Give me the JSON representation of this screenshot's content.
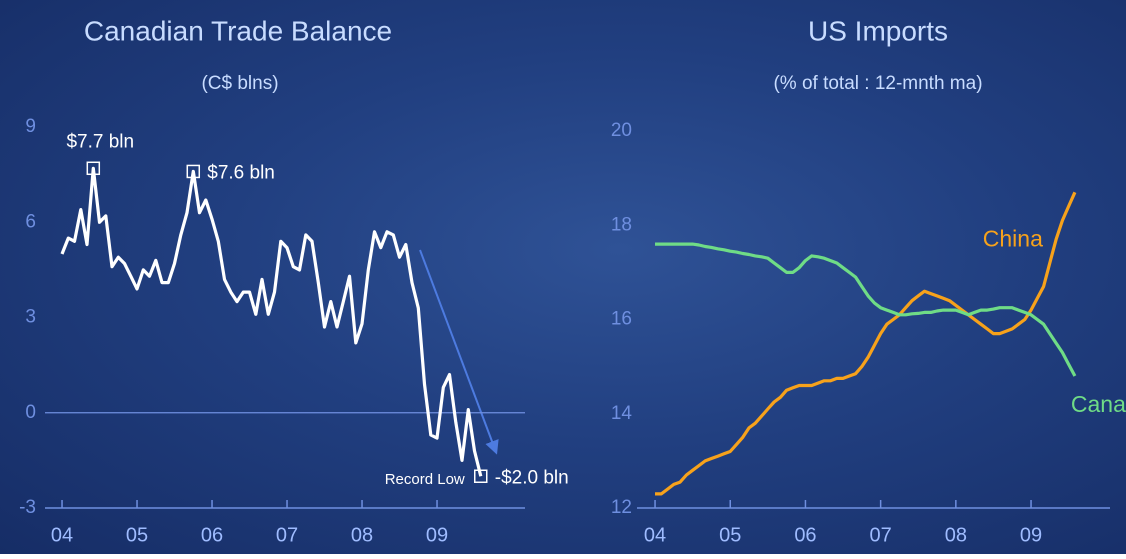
{
  "chart_data": [
    {
      "type": "line",
      "title": "Canadian Trade Balance",
      "subtitle": "(C$ blns)",
      "x": [
        2004,
        2004.083,
        2004.167,
        2004.25,
        2004.333,
        2004.417,
        2004.5,
        2004.583,
        2004.667,
        2004.75,
        2004.833,
        2004.917,
        2005,
        2005.083,
        2005.167,
        2005.25,
        2005.333,
        2005.417,
        2005.5,
        2005.583,
        2005.667,
        2005.75,
        2005.833,
        2005.917,
        2006,
        2006.083,
        2006.167,
        2006.25,
        2006.333,
        2006.417,
        2006.5,
        2006.583,
        2006.667,
        2006.75,
        2006.833,
        2006.917,
        2007,
        2007.083,
        2007.167,
        2007.25,
        2007.333,
        2007.417,
        2007.5,
        2007.583,
        2007.667,
        2007.75,
        2007.833,
        2007.917,
        2008,
        2008.083,
        2008.167,
        2008.25,
        2008.333,
        2008.417,
        2008.5,
        2008.583,
        2008.667,
        2008.75,
        2008.833,
        2008.917,
        2009,
        2009.083,
        2009.167,
        2009.25,
        2009.333,
        2009.417,
        2009.5,
        2009.583
      ],
      "values": [
        5.0,
        5.5,
        5.4,
        6.4,
        5.3,
        7.7,
        6.0,
        6.2,
        4.6,
        4.9,
        4.7,
        4.3,
        3.9,
        4.5,
        4.3,
        4.8,
        4.1,
        4.1,
        4.7,
        5.6,
        6.3,
        7.6,
        6.3,
        6.7,
        6.1,
        5.4,
        4.2,
        3.8,
        3.5,
        3.8,
        3.8,
        3.1,
        4.2,
        3.1,
        3.8,
        5.4,
        5.2,
        4.6,
        4.5,
        5.6,
        5.4,
        4.1,
        2.7,
        3.5,
        2.7,
        3.5,
        4.3,
        2.2,
        2.8,
        4.5,
        5.7,
        5.2,
        5.7,
        5.6,
        4.9,
        5.3,
        4.1,
        3.3,
        0.9,
        -0.7,
        -0.8,
        0.8,
        1.2,
        -0.3,
        -1.5,
        0.1,
        -1.2,
        -2.0
      ],
      "color": "#ffffff",
      "annotations": [
        "$7.7 bln",
        "$7.6 bln",
        "Record Low",
        "-$2.0 bln"
      ],
      "xlim": [
        2003.773,
        2010.173
      ],
      "xticks": [
        {
          "value": 2004,
          "label": "04"
        },
        {
          "value": 2005,
          "label": "05"
        },
        {
          "value": 2006,
          "label": "06"
        },
        {
          "value": 2007,
          "label": "07"
        },
        {
          "value": 2008,
          "label": "08"
        },
        {
          "value": 2009,
          "label": "09"
        }
      ],
      "ylim": [
        -3,
        9
      ],
      "yticks": [
        -3,
        0,
        3,
        6,
        9
      ]
    },
    {
      "type": "line",
      "title": "US Imports",
      "subtitle": "(% of total : 12-mnth ma)",
      "x": [
        2004,
        2004.083,
        2004.167,
        2004.25,
        2004.333,
        2004.417,
        2004.5,
        2004.583,
        2004.667,
        2004.75,
        2004.833,
        2004.917,
        2005,
        2005.083,
        2005.167,
        2005.25,
        2005.333,
        2005.417,
        2005.5,
        2005.583,
        2005.667,
        2005.75,
        2005.833,
        2005.917,
        2006,
        2006.083,
        2006.167,
        2006.25,
        2006.333,
        2006.417,
        2006.5,
        2006.583,
        2006.667,
        2006.75,
        2006.833,
        2006.917,
        2007,
        2007.083,
        2007.167,
        2007.25,
        2007.333,
        2007.417,
        2007.5,
        2007.583,
        2007.667,
        2007.75,
        2007.833,
        2007.917,
        2008,
        2008.083,
        2008.167,
        2008.25,
        2008.333,
        2008.417,
        2008.5,
        2008.583,
        2008.667,
        2008.75,
        2008.833,
        2008.917,
        2009,
        2009.083,
        2009.167,
        2009.25,
        2009.333,
        2009.417,
        2009.5,
        2009.583
      ],
      "series": [
        {
          "name": "China",
          "color": "#f7a21b",
          "values": [
            12.3,
            12.3,
            12.4,
            12.5,
            12.55,
            12.7,
            12.8,
            12.9,
            13.0,
            13.05,
            13.1,
            13.15,
            13.2,
            13.35,
            13.5,
            13.7,
            13.8,
            13.95,
            14.1,
            14.25,
            14.35,
            14.5,
            14.55,
            14.6,
            14.6,
            14.6,
            14.65,
            14.7,
            14.7,
            14.75,
            14.75,
            14.8,
            14.85,
            15.0,
            15.2,
            15.45,
            15.7,
            15.9,
            16.0,
            16.1,
            16.25,
            16.4,
            16.5,
            16.6,
            16.55,
            16.5,
            16.45,
            16.4,
            16.3,
            16.2,
            16.1,
            16.0,
            15.9,
            15.8,
            15.7,
            15.7,
            15.75,
            15.8,
            15.9,
            16.0,
            16.2,
            16.45,
            16.7,
            17.2,
            17.7,
            18.1,
            18.4,
            18.7
          ]
        },
        {
          "name": "Canada",
          "color": "#6fdc86",
          "values": [
            17.6,
            17.6,
            17.6,
            17.6,
            17.6,
            17.6,
            17.6,
            17.58,
            17.55,
            17.53,
            17.5,
            17.48,
            17.45,
            17.43,
            17.4,
            17.38,
            17.35,
            17.33,
            17.3,
            17.2,
            17.1,
            17.0,
            17.0,
            17.1,
            17.25,
            17.35,
            17.33,
            17.3,
            17.25,
            17.2,
            17.1,
            17.0,
            16.9,
            16.7,
            16.5,
            16.35,
            16.25,
            16.2,
            16.15,
            16.1,
            16.1,
            16.12,
            16.13,
            16.15,
            16.15,
            16.18,
            16.2,
            16.2,
            16.2,
            16.15,
            16.1,
            16.15,
            16.2,
            16.2,
            16.22,
            16.25,
            16.25,
            16.25,
            16.2,
            16.15,
            16.1,
            16.0,
            15.9,
            15.7,
            15.5,
            15.3,
            15.05,
            14.8
          ]
        }
      ],
      "xlim": [
        2003.76,
        2010.05
      ],
      "xticks": [
        {
          "value": 2004,
          "label": "04"
        },
        {
          "value": 2005,
          "label": "05"
        },
        {
          "value": 2006,
          "label": "06"
        },
        {
          "value": 2007,
          "label": "07"
        },
        {
          "value": 2008,
          "label": "08"
        },
        {
          "value": 2009,
          "label": "09"
        }
      ],
      "ylim": [
        12,
        20
      ],
      "yticks": [
        12,
        14,
        16,
        18,
        20
      ]
    }
  ]
}
